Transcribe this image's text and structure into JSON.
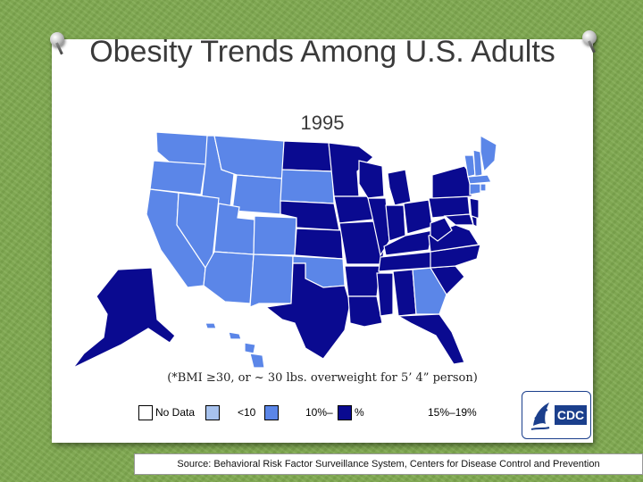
{
  "slide": {
    "title": "Obesity Trends Among U.S. Adults",
    "year": "1995",
    "bmi_note": "(*BMI ≥30, or ~ 30 lbs. overweight for 5’ 4” person)",
    "source": "Source: Behavioral Risk Factor Surveillance System, Centers for Disease Control and Prevention"
  },
  "legend": {
    "items": [
      {
        "label": "No Data",
        "color": "#ffffff"
      },
      {
        "label": "<10",
        "color": "#a7c2ee"
      },
      {
        "label": "10%–",
        "color": "#5b86e8"
      },
      {
        "label": "%",
        "color": "#0a0a90"
      },
      {
        "label": "15%–19%",
        "color": "#0a0a90"
      }
    ]
  },
  "colors": {
    "lt10": "#a7c2ee",
    "c10_14": "#5b86e8",
    "c15_19": "#0a0a90",
    "no_data": "#ffffff"
  },
  "map_data": {
    "WA": "10_14",
    "OR": "10_14",
    "CA": "10_14",
    "ID": "10_14",
    "NV": "10_14",
    "MT": "10_14",
    "WY": "10_14",
    "UT": "10_14",
    "AZ": "10_14",
    "CO": "10_14",
    "NM": "10_14",
    "ND": "15_19",
    "SD": "10_14",
    "NE": "15_19",
    "KS": "15_19",
    "OK": "10_14",
    "TX": "15_19",
    "MN": "15_19",
    "IA": "15_19",
    "MO": "15_19",
    "AR": "15_19",
    "LA": "15_19",
    "WI": "15_19",
    "IL": "15_19",
    "MI": "15_19",
    "IN": "15_19",
    "OH": "15_19",
    "KY": "15_19",
    "TN": "15_19",
    "MS": "15_19",
    "AL": "15_19",
    "GA": "10_14",
    "FL": "15_19",
    "SC": "15_19",
    "NC": "15_19",
    "VA": "15_19",
    "WV": "15_19",
    "PA": "15_19",
    "NY": "15_19",
    "NJ": "15_19",
    "MD": "15_19",
    "DE": "15_19",
    "VT": "10_14",
    "NH": "10_14",
    "ME": "10_14",
    "MA": "10_14",
    "CT": "10_14",
    "RI": "10_14",
    "AK": "15_19",
    "HI": "10_14"
  },
  "logo": {
    "agency_text": "CDC"
  }
}
